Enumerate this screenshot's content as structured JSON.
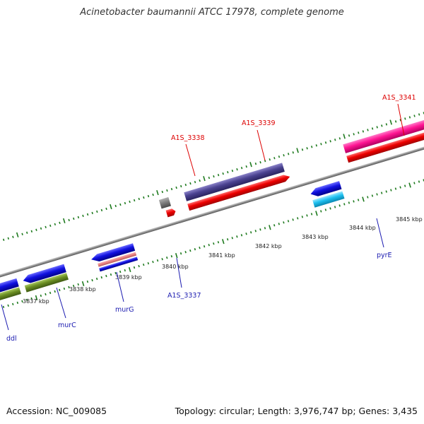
{
  "title": "Acinetobacter baumannii ATCC 17978, complete genome",
  "footer": {
    "accession": "Accession: NC_009085",
    "summary": "Topology: circular; Length: 3,976,747 bp; Genes: 3,435"
  },
  "colors": {
    "backbone": "#8c8c8c",
    "tick": "#1e7a1e",
    "locus_red": "#dd0000",
    "gene_blue": "#1a1ab0"
  },
  "scale": {
    "unit": "kbp",
    "labels": [
      "3837 kbp",
      "3838 kbp",
      "3839 kbp",
      "3840 kbp",
      "3841 kbp",
      "3842 kbp",
      "3843 kbp",
      "3844 kbp",
      "3845 kbp"
    ]
  },
  "gene_labels": [
    "ddl",
    "murC",
    "murG",
    "A1S_3337",
    "pyrE"
  ],
  "locus_labels": [
    "A1S_3338",
    "A1S_3339",
    "A1S_3341"
  ]
}
